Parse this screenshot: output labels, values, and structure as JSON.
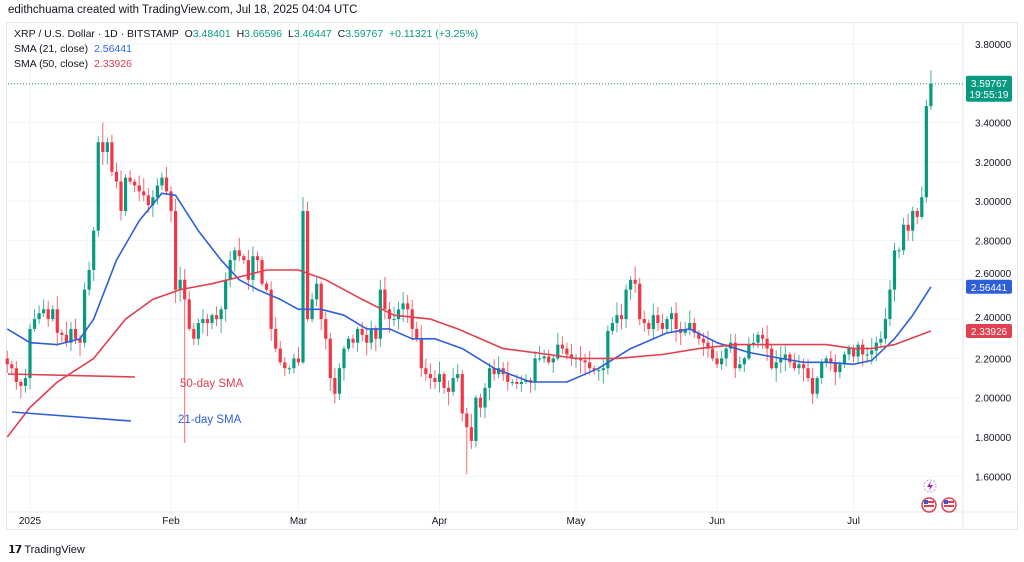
{
  "credit": "edithchuama created with TradingView.com, Jul 18, 2025 04:04 UTC",
  "legend": {
    "symbol": "XRP / U.S. Dollar · 1D · BITSTAMP",
    "o_label": "O",
    "o": "3.48401",
    "h_label": "H",
    "h": "3.66596",
    "l_label": "L",
    "l": "3.46447",
    "c_label": "C",
    "c": "3.59767",
    "change": "+0.11321 (+3.25%)",
    "sma21_label": "SMA (21, close)",
    "sma21": "2.56441",
    "sma50_label": "SMA (50, close)",
    "sma50": "2.33926"
  },
  "price_tag": {
    "price": "3.59767",
    "countdown": "19:55:19"
  },
  "brand": "TradingView",
  "colors": {
    "up": "#089981",
    "down": "#f23645",
    "sma21": "#2f5fd8",
    "sma50": "#e0404f",
    "grid": "#f0f3fa"
  },
  "icons": [
    "lightning-event-icon",
    "us-flag-icon",
    "us-flag-icon"
  ],
  "chart_data": {
    "type": "candlestick",
    "title": "XRP / U.S. Dollar · 1D · BITSTAMP",
    "start_date": "2024-12-27",
    "end_date": "2025-07-18",
    "ylim": [
      1.45,
      3.88
    ],
    "y_ticks": [
      "3.80000",
      "3.40000",
      "3.20000",
      "3.00000",
      "2.80000",
      "2.60000",
      "2.40000",
      "2.20000",
      "2.00000",
      "1.80000",
      "1.60000"
    ],
    "y_tick_values": [
      3.8,
      3.4,
      3.2,
      3.0,
      2.8,
      2.6,
      2.4,
      2.2,
      2.0,
      1.8,
      1.6
    ],
    "x_ticks": [
      {
        "label": "2025",
        "day": 0
      },
      {
        "label": "Feb",
        "day": 31
      },
      {
        "label": "Mar",
        "day": 59
      },
      {
        "label": "Apr",
        "day": 90
      },
      {
        "label": "May",
        "day": 120
      },
      {
        "label": "Jun",
        "day": 151
      },
      {
        "label": "Jul",
        "day": 181
      }
    ],
    "closes": [
      2.17,
      2.15,
      2.08,
      2.06,
      2.1,
      2.35,
      2.4,
      2.43,
      2.45,
      2.4,
      2.45,
      2.33,
      2.32,
      2.28,
      2.35,
      2.3,
      2.28,
      2.55,
      2.65,
      2.85,
      3.3,
      3.25,
      3.3,
      3.15,
      3.1,
      2.95,
      3.12,
      3.1,
      3.08,
      3.05,
      3.03,
      2.98,
      3.02,
      3.08,
      3.12,
      3.05,
      2.95,
      2.55,
      2.6,
      2.5,
      2.35,
      2.3,
      2.38,
      2.4,
      2.38,
      2.42,
      2.4,
      2.45,
      2.6,
      2.7,
      2.75,
      2.72,
      2.7,
      2.6,
      2.72,
      2.7,
      2.58,
      2.55,
      2.35,
      2.25,
      2.18,
      2.15,
      2.15,
      2.2,
      2.18,
      2.95,
      2.4,
      2.5,
      2.58,
      2.4,
      2.3,
      2.1,
      2.02,
      2.15,
      2.25,
      2.3,
      2.28,
      2.35,
      2.32,
      2.28,
      2.35,
      2.3,
      2.55,
      2.45,
      2.4,
      2.4,
      2.45,
      2.48,
      2.45,
      2.35,
      2.3,
      2.15,
      2.12,
      2.1,
      2.08,
      2.12,
      2.05,
      2.03,
      2.1,
      2.12,
      1.92,
      1.85,
      1.78,
      2.0,
      1.95,
      2.05,
      2.15,
      2.12,
      2.15,
      2.12,
      2.08,
      2.08,
      2.07,
      2.08,
      2.09,
      2.08,
      2.2,
      2.2,
      2.21,
      2.18,
      2.2,
      2.27,
      2.25,
      2.22,
      2.2,
      2.2,
      2.19,
      2.18,
      2.15,
      2.14,
      2.14,
      2.15,
      2.34,
      2.38,
      2.42,
      2.4,
      2.55,
      2.6,
      2.58,
      2.4,
      2.38,
      2.35,
      2.42,
      2.38,
      2.35,
      2.4,
      2.43,
      2.35,
      2.33,
      2.35,
      2.38,
      2.33,
      2.3,
      2.28,
      2.25,
      2.2,
      2.17,
      2.2,
      2.25,
      2.28,
      2.15,
      2.17,
      2.2,
      2.27,
      2.28,
      2.32,
      2.3,
      2.25,
      2.15,
      2.18,
      2.2,
      2.22,
      2.18,
      2.15,
      2.17,
      2.15,
      2.1,
      2.02,
      2.1,
      2.18,
      2.2,
      2.18,
      2.13,
      2.17,
      2.22,
      2.25,
      2.21,
      2.27,
      2.22,
      2.22,
      2.24,
      2.28,
      2.3,
      2.4,
      2.55,
      2.75,
      2.75,
      2.88,
      2.85,
      2.95,
      2.92,
      3.02,
      3.48401,
      3.59767
    ],
    "wick_overrides": [
      {
        "day": 16,
        "high": 3.4
      },
      {
        "day": 34,
        "low": 1.77
      },
      {
        "day": 60,
        "high": 3.02
      },
      {
        "day": 96,
        "low": 1.61
      },
      {
        "day": 198,
        "high": 3.66596,
        "low": 3.46447
      }
    ],
    "series": [
      {
        "name": "SMA (21, close)",
        "points": [
          [
            -5,
            2.35
          ],
          [
            0,
            2.28
          ],
          [
            6,
            2.27
          ],
          [
            11,
            2.3
          ],
          [
            14,
            2.4
          ],
          [
            19,
            2.7
          ],
          [
            24,
            2.9
          ],
          [
            29,
            3.04
          ],
          [
            32,
            3.03
          ],
          [
            37,
            2.85
          ],
          [
            42,
            2.7
          ],
          [
            46,
            2.6
          ],
          [
            50,
            2.55
          ],
          [
            55,
            2.5
          ],
          [
            59,
            2.45
          ],
          [
            64,
            2.45
          ],
          [
            69,
            2.42
          ],
          [
            74,
            2.35
          ],
          [
            79,
            2.35
          ],
          [
            84,
            2.3
          ],
          [
            89,
            2.3
          ],
          [
            95,
            2.25
          ],
          [
            102,
            2.15
          ],
          [
            110,
            2.08
          ],
          [
            118,
            2.08
          ],
          [
            125,
            2.15
          ],
          [
            132,
            2.25
          ],
          [
            140,
            2.33
          ],
          [
            145,
            2.35
          ],
          [
            151,
            2.28
          ],
          [
            158,
            2.23
          ],
          [
            165,
            2.2
          ],
          [
            170,
            2.18
          ],
          [
            175,
            2.18
          ],
          [
            181,
            2.17
          ],
          [
            185,
            2.19
          ],
          [
            190,
            2.3
          ],
          [
            194,
            2.42
          ],
          [
            198,
            2.56441
          ]
        ]
      },
      {
        "name": "SMA (50, close)",
        "points": [
          [
            -5,
            1.8
          ],
          [
            0,
            1.95
          ],
          [
            6,
            2.08
          ],
          [
            14,
            2.2
          ],
          [
            21,
            2.4
          ],
          [
            27,
            2.5
          ],
          [
            33,
            2.55
          ],
          [
            40,
            2.58
          ],
          [
            47,
            2.62
          ],
          [
            52,
            2.65
          ],
          [
            59,
            2.65
          ],
          [
            65,
            2.6
          ],
          [
            73,
            2.5
          ],
          [
            80,
            2.42
          ],
          [
            88,
            2.4
          ],
          [
            94,
            2.35
          ],
          [
            104,
            2.25
          ],
          [
            114,
            2.22
          ],
          [
            120,
            2.2
          ],
          [
            129,
            2.2
          ],
          [
            139,
            2.22
          ],
          [
            147,
            2.25
          ],
          [
            155,
            2.27
          ],
          [
            165,
            2.27
          ],
          [
            175,
            2.27
          ],
          [
            181,
            2.25
          ],
          [
            185,
            2.25
          ],
          [
            190,
            2.27
          ],
          [
            198,
            2.33926
          ]
        ]
      }
    ],
    "annotations": [
      {
        "text": "50-day SMA",
        "color": "sma50"
      },
      {
        "text": "21-day SMA",
        "color": "sma21"
      }
    ]
  }
}
